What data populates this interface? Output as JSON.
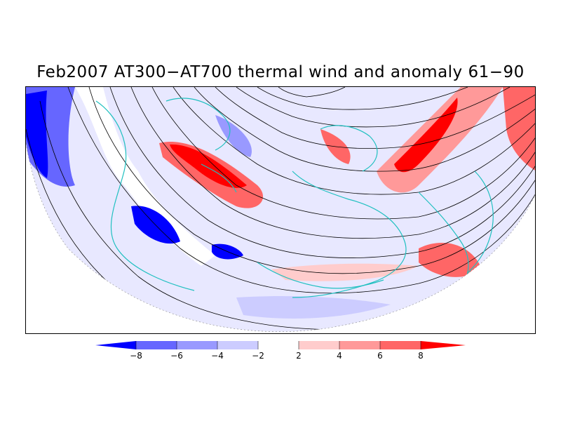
{
  "title": "Feb2007 AT300−AT700 thermal wind and anomaly 61−90",
  "colors": {
    "neg_strong": "#0000ff",
    "neg_3": "#6666ff",
    "neg_2": "#9999ff",
    "neg_1": "#ccccff",
    "neutral": "#ffffff",
    "pos_1": "#ffcccc",
    "pos_2": "#ff9999",
    "pos_3": "#ff6666",
    "pos_strong": "#ff0000",
    "coast": "#20c0c0",
    "streamline": "#000000"
  },
  "colorbar": {
    "ticks": [
      "−8",
      "−6",
      "−4",
      "−2",
      "2",
      "4",
      "6",
      "8"
    ]
  }
}
